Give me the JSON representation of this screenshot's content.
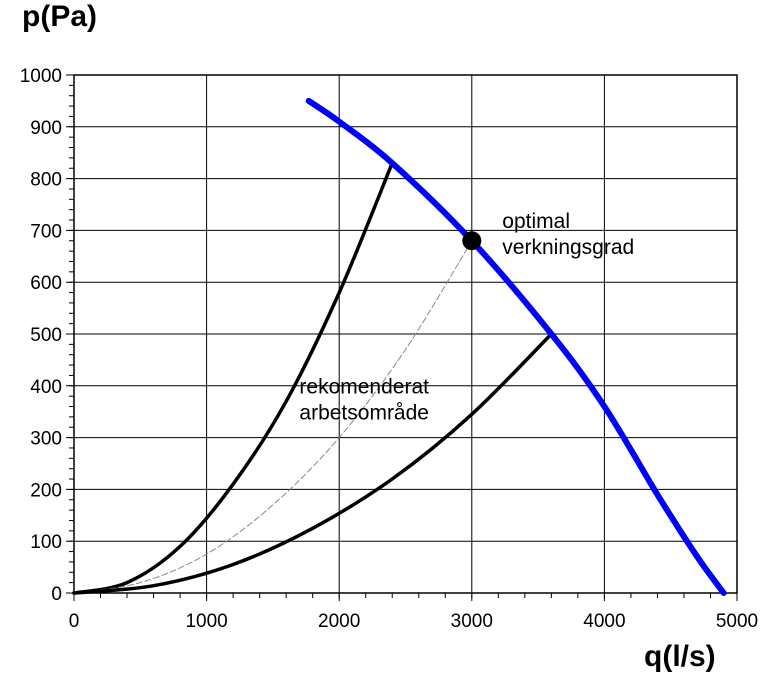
{
  "chart_data": {
    "type": "line",
    "xlabel": "q(l/s)",
    "ylabel": "p(Pa)",
    "xlim": [
      0,
      5000
    ],
    "ylim": [
      0,
      1000
    ],
    "x_ticks": [
      0,
      1000,
      2000,
      3000,
      4000,
      5000
    ],
    "y_ticks": [
      0,
      100,
      200,
      300,
      400,
      500,
      600,
      700,
      800,
      900,
      1000
    ],
    "grid": true,
    "series": [
      {
        "kind": "fan-curve",
        "color": "#0000ff",
        "x": [
          1770,
          2000,
          2400,
          3000,
          3600,
          4000,
          4400,
          4700,
          4900
        ],
        "y": [
          950,
          910,
          830,
          680,
          500,
          360,
          190,
          70,
          0
        ]
      },
      {
        "kind": "system-curve-upper",
        "color": "#000000",
        "x": [
          0,
          400,
          800,
          1200,
          1600,
          2000,
          2400
        ],
        "y": [
          0,
          20,
          90,
          210,
          370,
          580,
          830
        ]
      },
      {
        "kind": "system-curve-optimal",
        "color": "#888888",
        "dashed": true,
        "x": [
          0,
          500,
          1000,
          1500,
          2000,
          2500,
          3000
        ],
        "y": [
          0,
          20,
          75,
          170,
          300,
          470,
          680
        ]
      },
      {
        "kind": "system-curve-lower",
        "color": "#000000",
        "x": [
          0,
          600,
          1200,
          1800,
          2400,
          3000,
          3600
        ],
        "y": [
          0,
          14,
          55,
          125,
          220,
          345,
          500
        ]
      }
    ],
    "point": {
      "x": 3000,
      "y": 680,
      "color": "#000000"
    },
    "annotations": [
      {
        "lines": [
          "optimal",
          "verkningsgrad"
        ],
        "x": 3230,
        "y": 705
      },
      {
        "lines": [
          "rekomenderat",
          "arbetsområde"
        ],
        "x": 1700,
        "y": 385
      }
    ]
  }
}
